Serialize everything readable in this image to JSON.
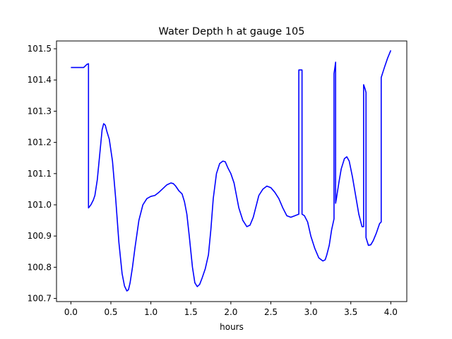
{
  "chart_data": {
    "type": "line",
    "title": "Water Depth h at gauge 105",
    "xlabel": "hours",
    "ylabel": "",
    "xlim": [
      -0.18,
      4.2
    ],
    "ylim": [
      100.69,
      101.525
    ],
    "x_ticks": [
      0.0,
      0.5,
      1.0,
      1.5,
      2.0,
      2.5,
      3.0,
      3.5,
      4.0
    ],
    "x_tick_labels": [
      "0.0",
      "0.5",
      "1.0",
      "1.5",
      "2.0",
      "2.5",
      "3.0",
      "3.5",
      "4.0"
    ],
    "y_ticks": [
      100.7,
      100.8,
      100.9,
      101.0,
      101.1,
      101.2,
      101.3,
      101.4,
      101.5
    ],
    "y_tick_labels": [
      "100.7",
      "100.8",
      "100.9",
      "101.0",
      "101.1",
      "101.2",
      "101.3",
      "101.4",
      "101.5"
    ],
    "grid": false,
    "line_color": "#0000ff",
    "series": [
      {
        "x": [
          0.0,
          0.1,
          0.16,
          0.2,
          0.22,
          0.22,
          0.25,
          0.28,
          0.3,
          0.33,
          0.36,
          0.39,
          0.41,
          0.43,
          0.45,
          0.48,
          0.52,
          0.56,
          0.6,
          0.64,
          0.67,
          0.7,
          0.72,
          0.74,
          0.77,
          0.8,
          0.85,
          0.9,
          0.95,
          1.0,
          1.05,
          1.1,
          1.15,
          1.2,
          1.25,
          1.28,
          1.31,
          1.35,
          1.39,
          1.42,
          1.45,
          1.48,
          1.52,
          1.55,
          1.58,
          1.61,
          1.64,
          1.68,
          1.72,
          1.75,
          1.78,
          1.82,
          1.86,
          1.9,
          1.93,
          1.96,
          2.0,
          2.04,
          2.07,
          2.1,
          2.15,
          2.2,
          2.24,
          2.28,
          2.31,
          2.35,
          2.4,
          2.45,
          2.5,
          2.55,
          2.6,
          2.65,
          2.7,
          2.75,
          2.8,
          2.85,
          2.85,
          2.88,
          2.89,
          2.89,
          2.92,
          2.96,
          3.0,
          3.05,
          3.1,
          3.15,
          3.18,
          3.2,
          3.23,
          3.26,
          3.29,
          3.29,
          3.31,
          3.31,
          3.32,
          3.35,
          3.38,
          3.42,
          3.45,
          3.48,
          3.52,
          3.56,
          3.6,
          3.64,
          3.66,
          3.66,
          3.68,
          3.69,
          3.69,
          3.72,
          3.75,
          3.78,
          3.82,
          3.86,
          3.88,
          3.88,
          3.92,
          3.96,
          4.0
        ],
        "y": [
          101.44,
          101.44,
          101.44,
          101.45,
          101.452,
          100.99,
          101.0,
          101.015,
          101.03,
          101.08,
          101.16,
          101.24,
          101.26,
          101.255,
          101.235,
          101.21,
          101.14,
          101.02,
          100.88,
          100.78,
          100.74,
          100.724,
          100.728,
          100.75,
          100.8,
          100.86,
          100.95,
          101.0,
          101.02,
          101.027,
          101.03,
          101.04,
          101.052,
          101.064,
          101.07,
          101.068,
          101.06,
          101.045,
          101.035,
          101.01,
          100.97,
          100.9,
          100.8,
          100.75,
          100.738,
          100.745,
          100.765,
          100.795,
          100.84,
          100.92,
          101.02,
          101.1,
          101.132,
          101.14,
          101.138,
          101.12,
          101.1,
          101.07,
          101.03,
          100.99,
          100.95,
          100.93,
          100.935,
          100.96,
          100.99,
          101.03,
          101.05,
          101.06,
          101.055,
          101.04,
          101.02,
          100.99,
          100.965,
          100.96,
          100.965,
          100.97,
          101.432,
          101.432,
          101.432,
          100.97,
          100.965,
          100.945,
          100.9,
          100.86,
          100.83,
          100.82,
          100.824,
          100.84,
          100.87,
          100.92,
          100.955,
          101.42,
          101.457,
          101.005,
          101.02,
          101.07,
          101.115,
          101.148,
          101.154,
          101.14,
          101.09,
          101.03,
          100.97,
          100.93,
          100.93,
          101.385,
          101.37,
          101.36,
          100.895,
          100.87,
          100.872,
          100.885,
          100.91,
          100.94,
          100.945,
          101.408,
          101.44,
          101.47,
          101.495
        ]
      }
    ]
  }
}
